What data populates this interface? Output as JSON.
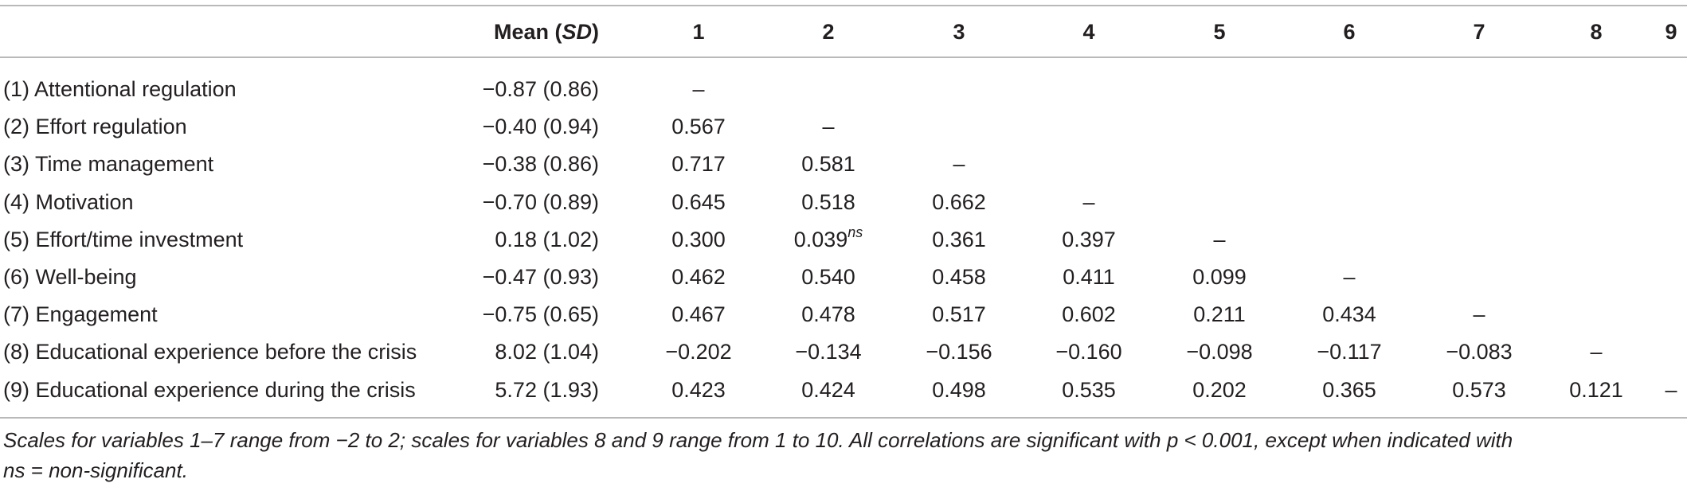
{
  "table": {
    "header": {
      "mean_label": "Mean (",
      "mean_sd": "SD",
      "mean_close": ")",
      "columns": [
        "1",
        "2",
        "3",
        "4",
        "5",
        "6",
        "7",
        "8",
        "9"
      ]
    },
    "rows": [
      {
        "label": "(1) Attentional regulation",
        "mean": "−0.87 (0.86)",
        "cells": [
          "–",
          "",
          "",
          "",
          "",
          "",
          "",
          "",
          ""
        ]
      },
      {
        "label": "(2) Effort regulation",
        "mean": "−0.40 (0.94)",
        "cells": [
          "0.567",
          "–",
          "",
          "",
          "",
          "",
          "",
          "",
          ""
        ]
      },
      {
        "label": "(3) Time management",
        "mean": "−0.38 (0.86)",
        "cells": [
          "0.717",
          "0.581",
          "–",
          "",
          "",
          "",
          "",
          "",
          ""
        ]
      },
      {
        "label": "(4) Motivation",
        "mean": "−0.70 (0.89)",
        "cells": [
          "0.645",
          "0.518",
          "0.662",
          "–",
          "",
          "",
          "",
          "",
          ""
        ]
      },
      {
        "label": "(5) Effort/time investment",
        "mean": "0.18 (1.02)",
        "cells": [
          "0.300",
          "0.039",
          "0.361",
          "0.397",
          "–",
          "",
          "",
          "",
          ""
        ],
        "superscript_col": 1,
        "superscript": "ns"
      },
      {
        "label": "(6) Well-being",
        "mean": "−0.47 (0.93)",
        "cells": [
          "0.462",
          "0.540",
          "0.458",
          "0.411",
          "0.099",
          "–",
          "",
          "",
          ""
        ]
      },
      {
        "label": "(7) Engagement",
        "mean": "−0.75 (0.65)",
        "cells": [
          "0.467",
          "0.478",
          "0.517",
          "0.602",
          "0.211",
          "0.434",
          "–",
          "",
          ""
        ]
      },
      {
        "label": "(8) Educational experience before the crisis",
        "mean": "8.02 (1.04)",
        "cells": [
          "−0.202",
          "−0.134",
          "−0.156",
          "−0.160",
          "−0.098",
          "−0.117",
          "−0.083",
          "–",
          ""
        ]
      },
      {
        "label": "(9) Educational experience during the crisis",
        "mean": "5.72 (1.93)",
        "cells": [
          "0.423",
          "0.424",
          "0.498",
          "0.535",
          "0.202",
          "0.365",
          "0.573",
          "0.121",
          "–"
        ]
      }
    ]
  },
  "note": {
    "line1": "Scales for variables 1–7 range from −2 to 2; scales for variables 8 and 9 range from 1 to 10. All correlations are significant with p < 0.001, except when indicated with",
    "line2": "ns = non-significant."
  }
}
